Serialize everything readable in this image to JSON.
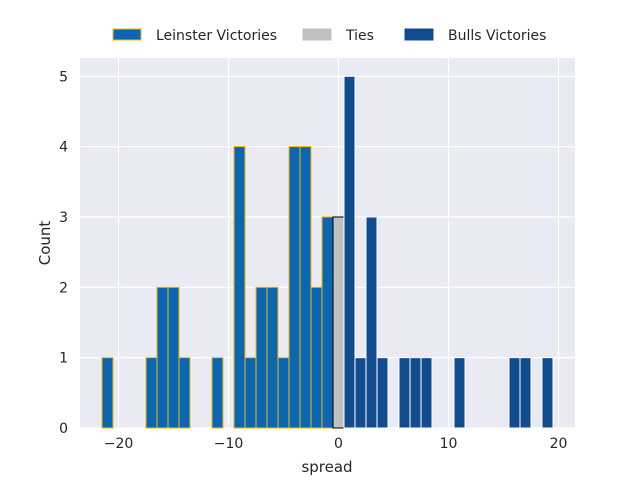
{
  "chart_data": {
    "type": "bar",
    "title": "",
    "xlabel": "spread",
    "ylabel": "Count",
    "xlim": [
      -23.5,
      21.5
    ],
    "ylim": [
      0,
      5.26
    ],
    "xticks": [
      -20,
      -10,
      0,
      10,
      20
    ],
    "xtick_labels": [
      "−20",
      "−10",
      "0",
      "10",
      "20"
    ],
    "yticks": [
      0,
      1,
      2,
      3,
      4,
      5
    ],
    "ytick_labels": [
      "0",
      "1",
      "2",
      "3",
      "4",
      "5"
    ],
    "grid": true,
    "legend_placement": "top-center",
    "bin_width": 1,
    "series": [
      {
        "name": "Leinster Victories",
        "color": "#0a66b0",
        "edge": "#f5b800",
        "x": [
          -21,
          -17,
          -16,
          -15,
          -14,
          -11,
          -9,
          -8,
          -7,
          -6,
          -5,
          -4,
          -3,
          -2,
          -1
        ],
        "values": [
          1,
          1,
          2,
          2,
          1,
          1,
          4,
          1,
          2,
          2,
          1,
          4,
          4,
          2,
          3
        ]
      },
      {
        "name": "Ties",
        "color": "#c0c0c0",
        "edge": "#000000",
        "x": [
          0
        ],
        "values": [
          3
        ]
      },
      {
        "name": "Bulls Victories",
        "color": "#114c8e",
        "edge": "#ffffff",
        "x": [
          1,
          2,
          3,
          4,
          6,
          7,
          8,
          11,
          16,
          17,
          19
        ],
        "values": [
          5,
          1,
          3,
          1,
          1,
          1,
          1,
          1,
          1,
          1,
          1
        ]
      }
    ]
  }
}
